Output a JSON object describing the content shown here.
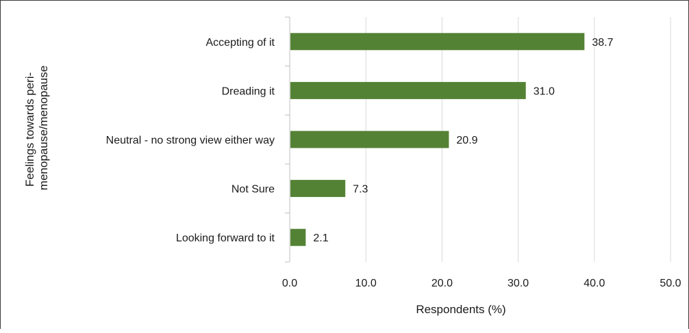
{
  "chart_data": {
    "type": "bar",
    "orientation": "horizontal",
    "title": "",
    "xlabel": "Respondents (%)",
    "ylabel_lines": [
      "Feelings towards peri-",
      "menopause/menopause"
    ],
    "categories": [
      "Accepting of it",
      "Dreading it",
      "Neutral - no strong view either way",
      "Not Sure",
      "Looking forward to it"
    ],
    "values": [
      38.7,
      31.0,
      20.9,
      7.3,
      2.1
    ],
    "value_labels": [
      "38.7",
      "31.0",
      "20.9",
      "7.3",
      "2.1"
    ],
    "xlim": [
      0,
      50
    ],
    "xticks": [
      0,
      10,
      20,
      30,
      40,
      50
    ],
    "xtick_labels": [
      "0.0",
      "10.0",
      "20.0",
      "30.0",
      "40.0",
      "50.0"
    ],
    "grid": "vertical",
    "legend": "none",
    "bar_color": "#548235",
    "grid_color": "#d9d9d9",
    "axis_color": "#bfbfbf"
  }
}
